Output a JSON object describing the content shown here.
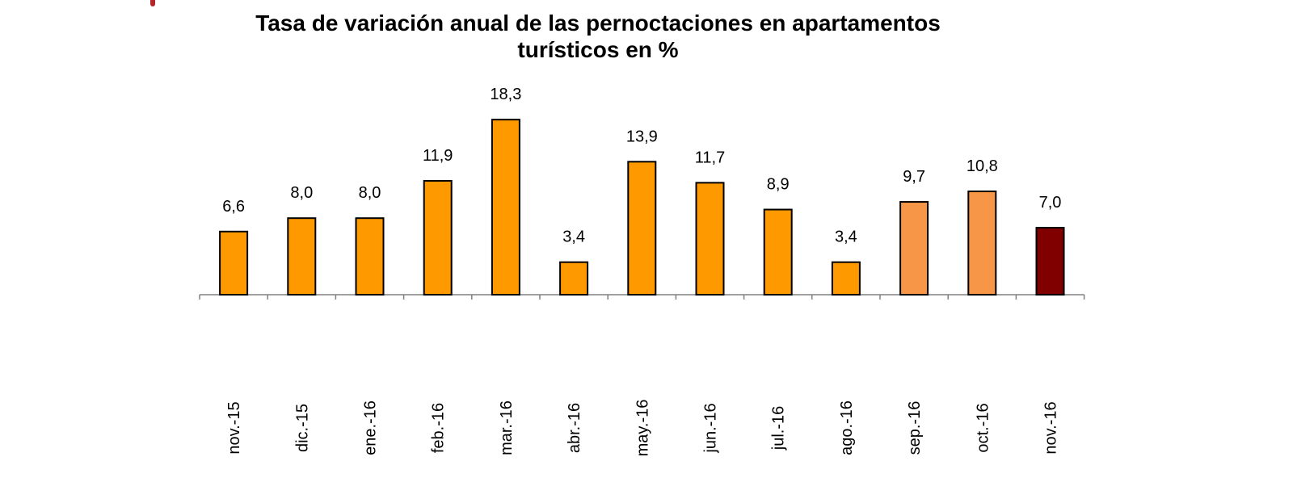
{
  "chart_data": {
    "type": "bar",
    "title_line1": "Tasa de variación anual de las pernoctaciones en apartamentos",
    "title_line2": "turísticos en %",
    "categories": [
      "nov.-15",
      "dic.-15",
      "ene.-16",
      "feb.-16",
      "mar.-16",
      "abr.-16",
      "may.-16",
      "jun.-16",
      "jul.-16",
      "ago.-16",
      "sep.-16",
      "oct.-16",
      "nov.-16"
    ],
    "values": [
      6.6,
      8.0,
      8.0,
      11.9,
      18.3,
      3.4,
      13.9,
      11.7,
      8.9,
      3.4,
      9.7,
      10.8,
      7.0
    ],
    "value_labels": [
      "6,6",
      "8,0",
      "8,0",
      "11,9",
      "18,3",
      "3,4",
      "13,9",
      "11,7",
      "8,9",
      "3,4",
      "9,7",
      "10,8",
      "7,0"
    ],
    "colors": [
      "#FF9900",
      "#FF9900",
      "#FF9900",
      "#FF9900",
      "#FF9900",
      "#FF9900",
      "#FF9900",
      "#FF9900",
      "#FF9900",
      "#FF9900",
      "#F79646",
      "#F79646",
      "#800000"
    ],
    "xlabel": "",
    "ylabel": "",
    "ylim": [
      0,
      20
    ],
    "grid": false,
    "legend": "none"
  }
}
